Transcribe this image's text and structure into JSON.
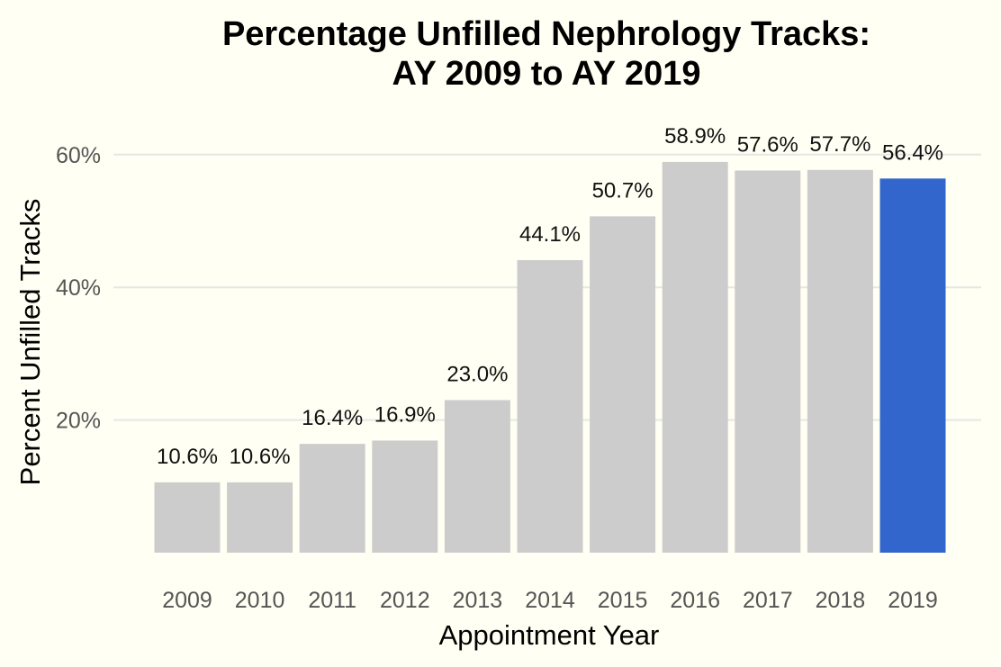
{
  "chart_data": {
    "type": "bar",
    "title_lines": [
      "Percentage Unfilled Nephrology Tracks:",
      "AY 2009 to AY 2019"
    ],
    "xlabel": "Appointment Year",
    "ylabel": "Percent Unfilled Tracks",
    "categories": [
      "2009",
      "2010",
      "2011",
      "2012",
      "2013",
      "2014",
      "2015",
      "2016",
      "2017",
      "2018",
      "2019"
    ],
    "values": [
      10.6,
      10.6,
      16.4,
      16.9,
      23.0,
      44.1,
      50.7,
      58.9,
      57.6,
      57.7,
      56.4
    ],
    "data_labels": [
      "10.6%",
      "10.6%",
      "16.4%",
      "16.9%",
      "23.0%",
      "44.1%",
      "50.7%",
      "58.9%",
      "57.6%",
      "57.7%",
      "56.4%"
    ],
    "y_ticks": [
      20,
      40,
      60
    ],
    "y_tick_labels": [
      "20%",
      "40%",
      "60%"
    ],
    "ylim": [
      0,
      65
    ],
    "grid": "horizontal",
    "legend": "none",
    "colors": {
      "default_bar": "#cccccc",
      "highlight_bar": "#3366cc",
      "background": "#fffff3"
    },
    "highlight_category": "2019"
  }
}
